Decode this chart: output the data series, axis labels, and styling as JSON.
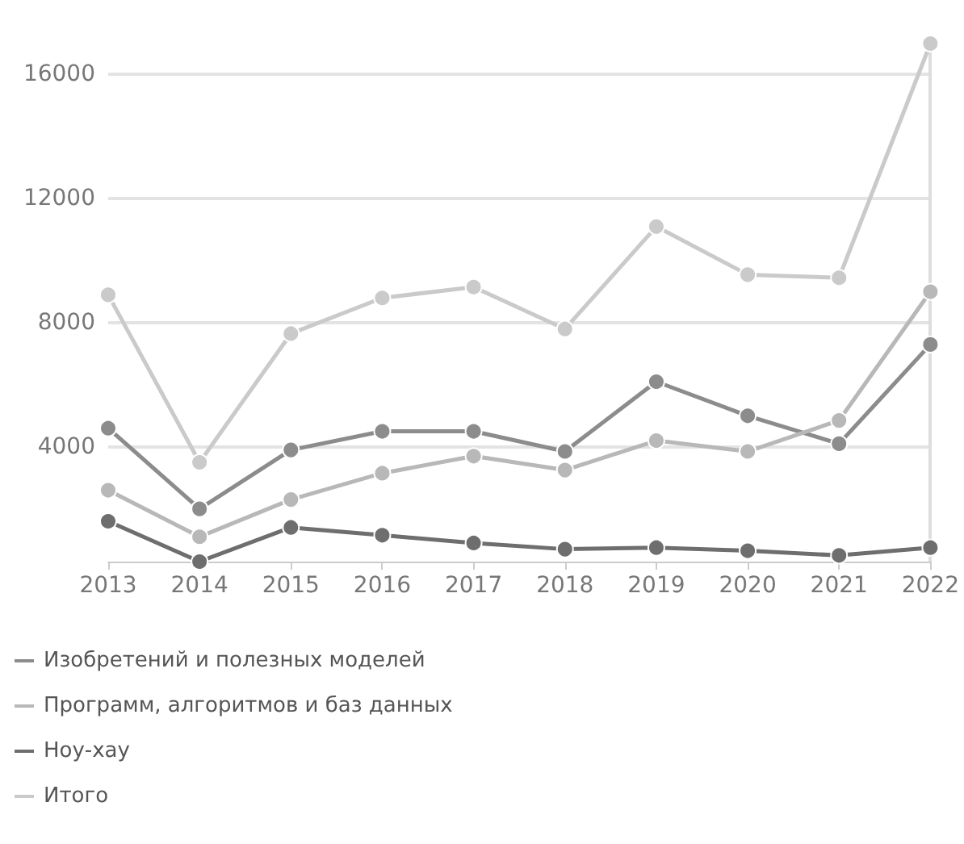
{
  "chart_data": {
    "type": "line",
    "categories": [
      "2013",
      "2014",
      "2015",
      "2016",
      "2017",
      "2018",
      "2019",
      "2020",
      "2021",
      "2022"
    ],
    "series": [
      {
        "name": "Изобретений и полезных моделей",
        "color": "#8c8c8c",
        "values": [
          4600,
          2000,
          3900,
          4500,
          4500,
          3850,
          6100,
          5000,
          4100,
          7300
        ]
      },
      {
        "name": "Программ, алгоритмов и баз данных",
        "color": "#b8b8b8",
        "values": [
          2600,
          1100,
          2300,
          3150,
          3700,
          3250,
          4200,
          3850,
          4850,
          9000
        ]
      },
      {
        "name": "Ноу-хау",
        "color": "#6e6e6e",
        "values": [
          1600,
          300,
          1400,
          1150,
          900,
          700,
          750,
          650,
          500,
          750
        ]
      },
      {
        "name": "Итого",
        "color": "#cacaca",
        "values": [
          8900,
          3500,
          7650,
          8800,
          9150,
          7800,
          11100,
          9550,
          9450,
          17000
        ]
      }
    ],
    "ylim": [
      300,
      17000
    ],
    "yticks": [
      4000,
      8000,
      12000,
      16000
    ],
    "grid": "y",
    "legend": "bottom",
    "marker": "circle",
    "line_style": "solid"
  }
}
